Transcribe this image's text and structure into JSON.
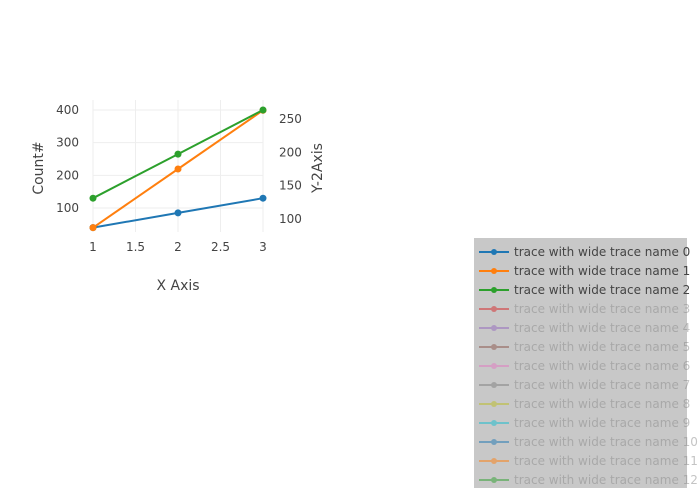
{
  "chart_data": {
    "type": "line",
    "x": [
      1,
      2,
      3
    ],
    "xlabel": "X Axis",
    "ylabel": "Count#",
    "y2label": "Y-2Axis",
    "xlim": [
      1,
      3
    ],
    "ylim": [
      40,
      400
    ],
    "y2lim": [
      87,
      263
    ],
    "x_ticks": [
      "1",
      "1.5",
      "2",
      "2.5",
      "3"
    ],
    "y_ticks": [
      "100",
      "200",
      "300",
      "400"
    ],
    "y2_ticks": [
      "100",
      "150",
      "200",
      "250"
    ],
    "grid": true,
    "legend_position": "bottom-right",
    "series": [
      {
        "name": "trace with wide trace name 0",
        "axis": "y",
        "values": [
          40,
          85,
          130
        ],
        "color": "#1f77b4",
        "visible": true
      },
      {
        "name": "trace with wide trace name 1",
        "axis": "y2",
        "values": [
          87,
          175,
          263
        ],
        "color": "#ff7f0e",
        "visible": true
      },
      {
        "name": "trace with wide trace name 2",
        "axis": "y",
        "values": [
          130,
          265,
          400
        ],
        "color": "#2ca02c",
        "visible": true
      },
      {
        "name": "trace with wide trace name 3",
        "color": "#d62728",
        "visible": false
      },
      {
        "name": "trace with wide trace name 4",
        "color": "#9467bd",
        "visible": false
      },
      {
        "name": "trace with wide trace name 5",
        "color": "#8c564b",
        "visible": false
      },
      {
        "name": "trace with wide trace name 6",
        "color": "#e377c2",
        "visible": false
      },
      {
        "name": "trace with wide trace name 7",
        "color": "#7f7f7f",
        "visible": false
      },
      {
        "name": "trace with wide trace name 8",
        "color": "#bcbd22",
        "visible": false
      },
      {
        "name": "trace with wide trace name 9",
        "color": "#17becf",
        "visible": false
      },
      {
        "name": "trace with wide trace name 10",
        "color": "#1f77b4",
        "visible": false
      },
      {
        "name": "trace with wide trace name 11",
        "color": "#ff7f0e",
        "visible": false
      },
      {
        "name": "trace with wide trace name 12",
        "color": "#2ca02c",
        "visible": false
      }
    ]
  },
  "colors": {
    "grid": "#eeeeee",
    "tick_text": "#444444",
    "legend_bg": "#c8c8c8",
    "legend_text_visible": "#444444",
    "legend_text_hidden": "#8a8a8a"
  }
}
